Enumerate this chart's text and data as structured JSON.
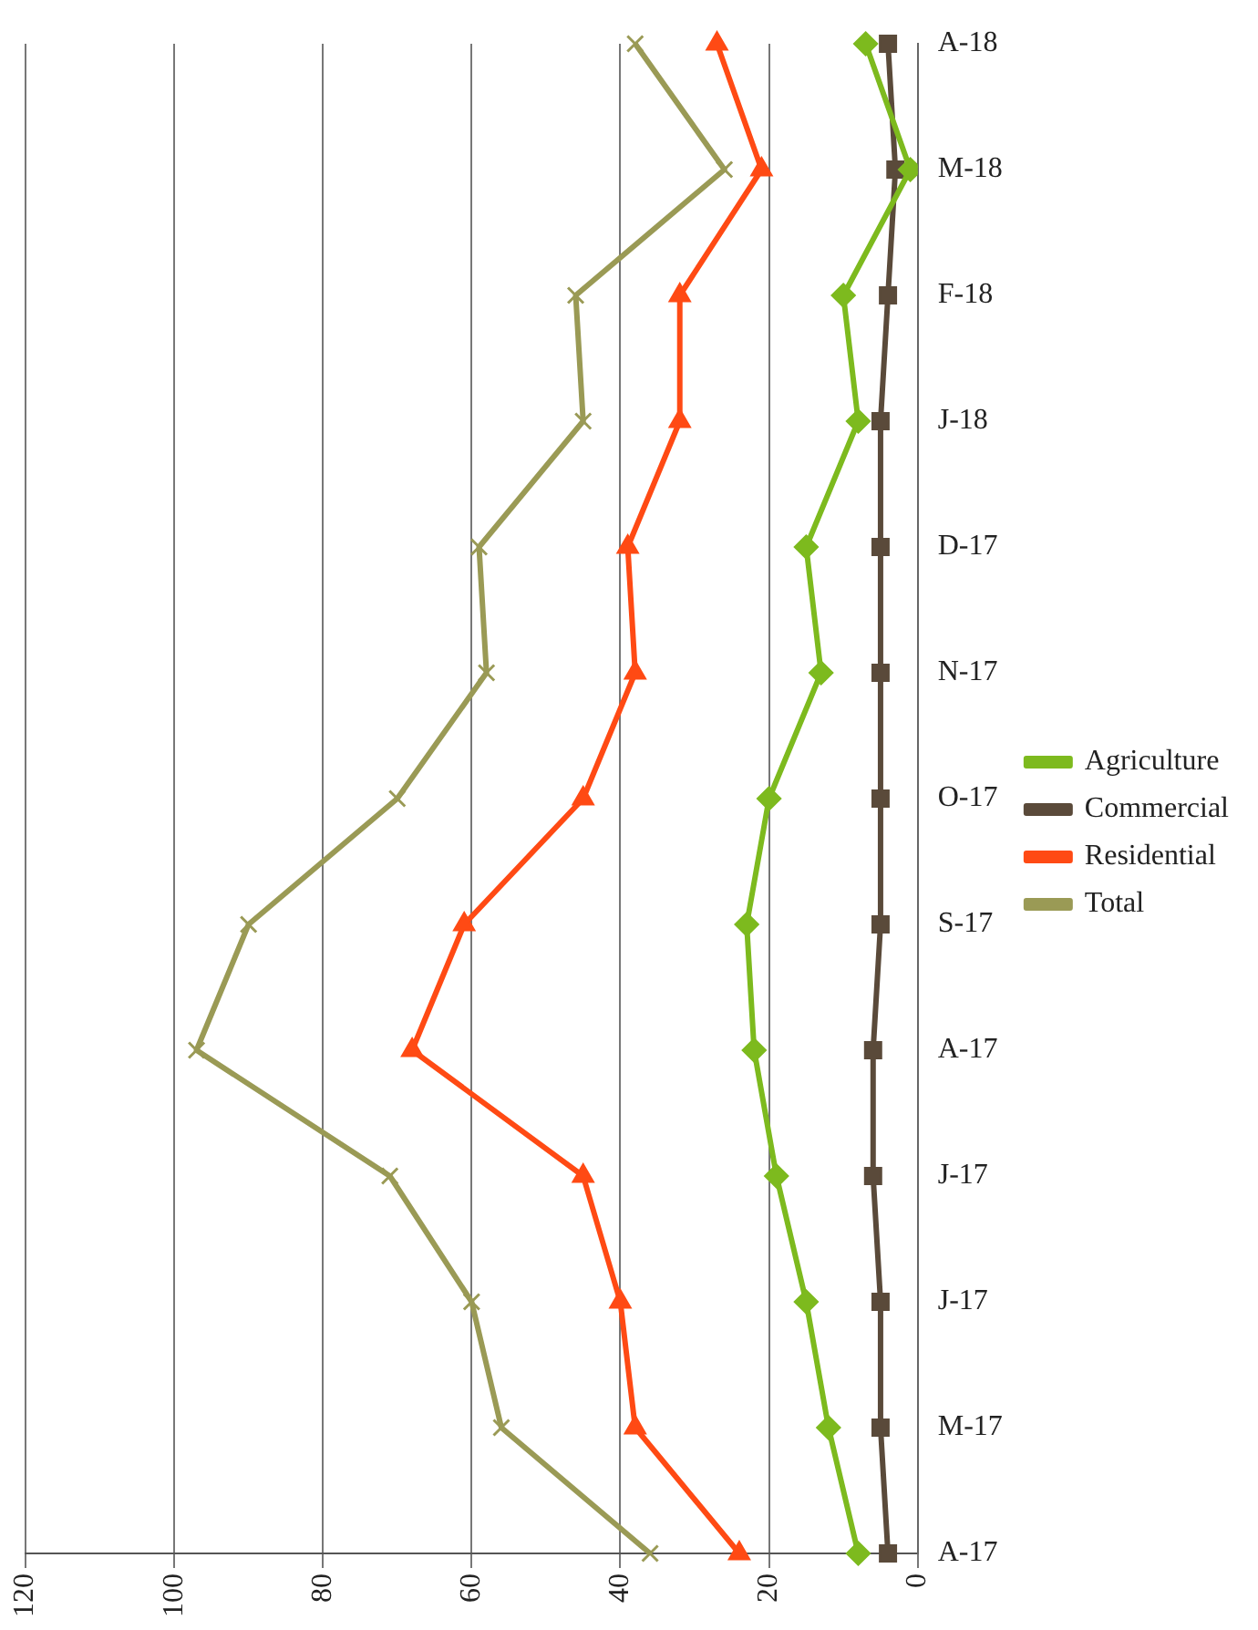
{
  "chart_data": {
    "type": "line",
    "orientation": "horizontal",
    "categories": [
      "A-18",
      "M-18",
      "F-18",
      "J-18",
      "D-17",
      "N-17",
      "O-17",
      "S-17",
      "A-17",
      "J-17",
      "J-17",
      "M-17",
      "A-17"
    ],
    "series": [
      {
        "name": "Agriculture",
        "color": "#7dba1e",
        "marker": "diamond",
        "values": [
          7,
          1,
          10,
          8,
          15,
          13,
          20,
          23,
          22,
          19,
          15,
          12,
          8
        ]
      },
      {
        "name": "Commercial",
        "color": "#5a4a3a",
        "marker": "square",
        "values": [
          4,
          3,
          4,
          5,
          5,
          5,
          5,
          5,
          6,
          6,
          5,
          5,
          4
        ]
      },
      {
        "name": "Residential",
        "color": "#ff4a14",
        "marker": "triangle",
        "values": [
          27,
          21,
          32,
          32,
          39,
          38,
          45,
          61,
          68,
          45,
          40,
          38,
          24
        ]
      },
      {
        "name": "Total",
        "color": "#9a9a55",
        "marker": "cross",
        "values": [
          38,
          26,
          46,
          45,
          59,
          58,
          70,
          90,
          97,
          71,
          60,
          56,
          36
        ]
      }
    ],
    "xlim": [
      120,
      0
    ],
    "xticks": [
      0,
      20,
      40,
      60,
      80,
      100,
      120
    ],
    "grid": "x",
    "legend": "right"
  }
}
